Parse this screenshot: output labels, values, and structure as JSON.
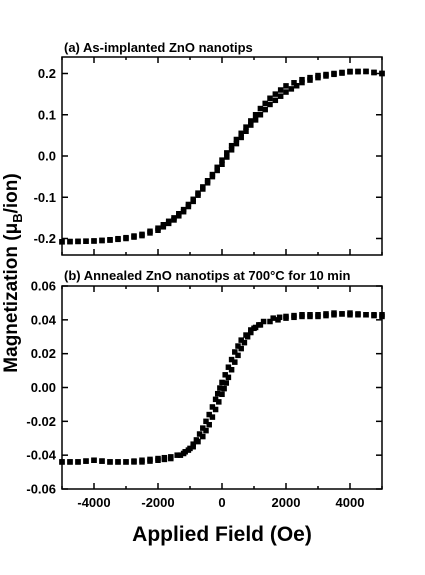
{
  "chart_data": {
    "type": "scatter",
    "ylabel": "Magnetization (μB/ion)",
    "xlabel": "Applied Field (Oe)",
    "xlim": [
      -5000,
      5000
    ],
    "x_ticks": [
      -4000,
      -2000,
      0,
      2000,
      4000
    ],
    "x_tick_labels": [
      "-4000",
      "-2000",
      "0",
      "2000",
      "4000"
    ],
    "marker": "square",
    "marker_color": "#000000",
    "panels": [
      {
        "title": "(a) As-implanted ZnO nanotips",
        "ylim": [
          -0.24,
          0.24
        ],
        "y_ticks": [
          -0.2,
          -0.1,
          0.0,
          0.1,
          0.2
        ],
        "y_tick_labels": [
          "-0.2",
          "-0.1",
          "0.0",
          "0.1",
          "0.2"
        ],
        "series": [
          {
            "branch": "descending",
            "x": [
              5000,
              4500,
              4000,
              3500,
              3000,
              2500,
              2000,
              1500,
              1200,
              900,
              600,
              300,
              0,
              -300,
              -600,
              -900,
              -1200,
              -1500,
              -2000,
              -2500,
              -3000,
              -3500,
              -4000,
              -4500,
              -5000
            ],
            "y": [
              0.2,
              0.205,
              0.205,
              0.2,
              0.195,
              0.185,
              0.17,
              0.14,
              0.115,
              0.085,
              0.055,
              0.025,
              -0.01,
              -0.045,
              -0.075,
              -0.105,
              -0.13,
              -0.15,
              -0.175,
              -0.19,
              -0.198,
              -0.203,
              -0.206,
              -0.207,
              -0.208
            ]
          },
          {
            "branch": "ascending",
            "x": [
              -5000,
              -4500,
              -4000,
              -3500,
              -3000,
              -2500,
              -2000,
              -1500,
              -1200,
              -900,
              -600,
              -300,
              0,
              300,
              600,
              900,
              1200,
              1500,
              2000,
              2500,
              3000,
              3500,
              4000,
              4500,
              5000
            ],
            "y": [
              -0.208,
              -0.207,
              -0.206,
              -0.204,
              -0.2,
              -0.193,
              -0.18,
              -0.155,
              -0.135,
              -0.11,
              -0.08,
              -0.05,
              -0.02,
              0.015,
              0.045,
              0.075,
              0.1,
              0.125,
              0.155,
              0.178,
              0.19,
              0.198,
              0.204,
              0.205,
              0.2
            ]
          }
        ]
      },
      {
        "title": "(b) Annealed ZnO nanotips at 700°C for 10 min",
        "ylim": [
          -0.06,
          0.06
        ],
        "y_ticks": [
          -0.06,
          -0.04,
          -0.02,
          0.0,
          0.02,
          0.04,
          0.06
        ],
        "y_tick_labels": [
          "-0.06",
          "-0.04",
          "-0.02",
          "0.00",
          "0.02",
          "0.04",
          "0.06"
        ],
        "series": [
          {
            "branch": "descending",
            "x": [
              5000,
              4500,
              4000,
              3500,
              3000,
              2500,
              2000,
              1500,
              1200,
              900,
              600,
              400,
              200,
              0,
              -200,
              -400,
              -600,
              -800,
              -1000,
              -1300,
              -1600,
              -2000,
              -2500,
              -3000,
              -3500,
              -4000,
              -4500,
              -5000
            ],
            "y": [
              0.043,
              0.043,
              0.044,
              0.043,
              0.042,
              0.042,
              0.041,
              0.039,
              0.037,
              0.034,
              0.028,
              0.021,
              0.012,
              0.003,
              -0.007,
              -0.016,
              -0.024,
              -0.031,
              -0.036,
              -0.04,
              -0.042,
              -0.043,
              -0.044,
              -0.044,
              -0.044,
              -0.043,
              -0.044,
              -0.044
            ]
          },
          {
            "branch": "ascending",
            "x": [
              -5000,
              -4500,
              -4000,
              -3500,
              -3000,
              -2500,
              -2000,
              -1600,
              -1200,
              -900,
              -600,
              -400,
              -200,
              0,
              200,
              400,
              600,
              800,
              1000,
              1300,
              1600,
              2000,
              2500,
              3000,
              3500,
              4000,
              4500,
              5000
            ],
            "y": [
              -0.044,
              -0.044,
              -0.043,
              -0.044,
              -0.044,
              -0.043,
              -0.042,
              -0.041,
              -0.039,
              -0.035,
              -0.029,
              -0.022,
              -0.013,
              -0.004,
              0.006,
              0.015,
              0.023,
              0.03,
              0.035,
              0.039,
              0.041,
              0.042,
              0.043,
              0.043,
              0.044,
              0.043,
              0.043,
              0.042
            ]
          }
        ]
      }
    ]
  }
}
